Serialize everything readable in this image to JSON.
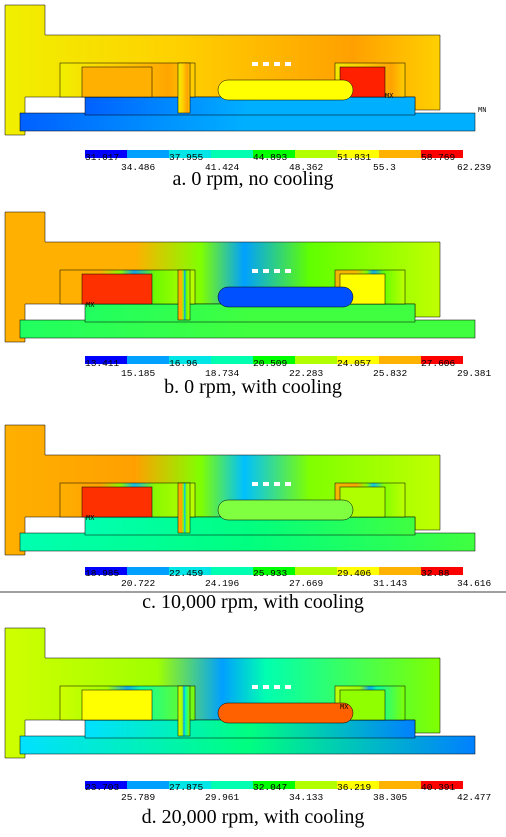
{
  "panels": [
    {
      "legend": [
        "31.017",
        "34.486",
        "37.955",
        "41.424",
        "44.893",
        "48.362",
        "51.831",
        "55.3",
        "58.769",
        "62.239"
      ],
      "markers": [
        "MX",
        "MN"
      ],
      "caption": "a. 0 rpm, no cooling"
    },
    {
      "legend": [
        "13.411",
        "15.185",
        "16.96",
        "18.734",
        "20.509",
        "22.283",
        "24.057",
        "25.832",
        "27.606",
        "29.381"
      ],
      "markers": [
        "MX"
      ],
      "caption": "b. 0 rpm, with cooling"
    },
    {
      "legend": [
        "18.985",
        "20.722",
        "22.459",
        "24.196",
        "25.933",
        "27.669",
        "29.406",
        "31.143",
        "32.88",
        "34.616"
      ],
      "markers": [
        "MX"
      ],
      "caption": "c. 10,000 rpm, with cooling"
    },
    {
      "legend": [
        "23.703",
        "25.789",
        "27.875",
        "29.961",
        "32.047",
        "34.133",
        "36.219",
        "38.305",
        "40.391",
        "42.477"
      ],
      "markers": [
        "MX"
      ],
      "caption": "d. 20,000 rpm, with cooling"
    }
  ],
  "legend_colors": [
    "#0000ff",
    "#00a0ff",
    "#00e6e6",
    "#00ffb0",
    "#00ff00",
    "#b2ff00",
    "#ffff00",
    "#ffb200",
    "#ff0000"
  ]
}
